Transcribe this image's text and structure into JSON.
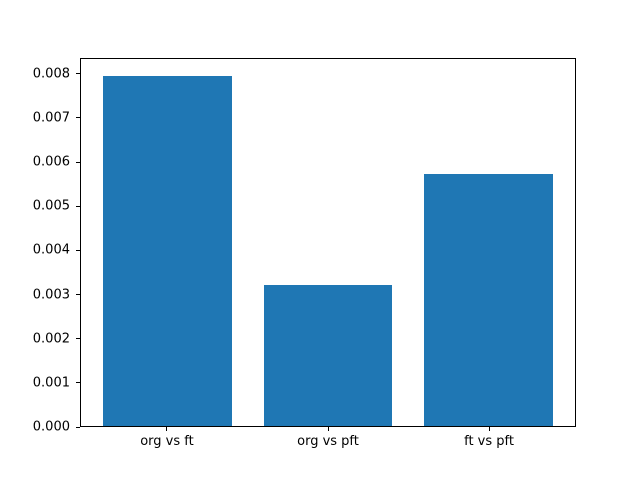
{
  "figure": {
    "background": "#ffffff"
  },
  "chart_data": {
    "type": "bar",
    "title": "",
    "xlabel": "",
    "ylabel": "",
    "categories": [
      "org vs ft",
      "org vs pft",
      "ft vs pft"
    ],
    "values": [
      0.00796,
      0.00322,
      0.00573
    ],
    "bar_color": "#1f77b4",
    "bar_width_fraction": 0.8,
    "xlim": [
      -0.54,
      2.54
    ],
    "ylim": [
      0,
      0.008358
    ],
    "yticks": [
      0,
      0.001,
      0.002,
      0.003,
      0.004,
      0.005,
      0.006,
      0.007,
      0.008
    ],
    "ytick_labels": [
      "0.000",
      "0.001",
      "0.002",
      "0.003",
      "0.004",
      "0.005",
      "0.006",
      "0.007",
      "0.008"
    ],
    "grid": false,
    "legend_position": "none",
    "axis_color": "#000000",
    "text_color": "#000000"
  }
}
